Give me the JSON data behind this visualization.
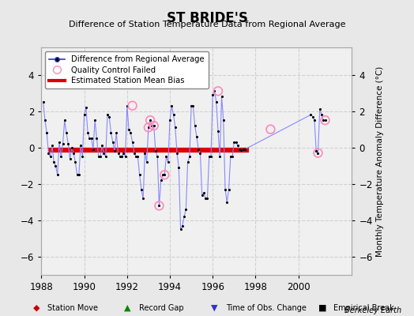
{
  "title": "ST BRIDE'S",
  "subtitle": "Difference of Station Temperature Data from Regional Average",
  "ylabel": "Monthly Temperature Anomaly Difference (°C)",
  "background_color": "#e8e8e8",
  "plot_bg_color": "#f0f0f0",
  "grid_color": "#d0d0d0",
  "xlim": [
    1988.0,
    2002.5
  ],
  "ylim": [
    -7.0,
    5.5
  ],
  "yticks": [
    -6,
    -4,
    -2,
    0,
    2,
    4
  ],
  "xticks": [
    1988,
    1990,
    1992,
    1994,
    1996,
    1998,
    2000
  ],
  "bias_level": -0.15,
  "bias_x_start": 1988.3,
  "bias_x_end": 1997.7,
  "main_line_color": "#8888ff",
  "main_marker_color": "#000000",
  "qc_color": "#ff88bb",
  "bias_color": "#dd0000",
  "x_data": [
    1988.083,
    1988.167,
    1988.25,
    1988.333,
    1988.417,
    1988.5,
    1988.583,
    1988.667,
    1988.75,
    1988.833,
    1988.917,
    1989.0,
    1989.083,
    1989.167,
    1989.25,
    1989.333,
    1989.417,
    1989.5,
    1989.583,
    1989.667,
    1989.75,
    1989.833,
    1989.917,
    1990.0,
    1990.083,
    1990.167,
    1990.25,
    1990.333,
    1990.417,
    1990.5,
    1990.583,
    1990.667,
    1990.75,
    1990.833,
    1990.917,
    1991.0,
    1991.083,
    1991.167,
    1991.25,
    1991.333,
    1991.417,
    1991.5,
    1991.583,
    1991.667,
    1991.75,
    1991.833,
    1991.917,
    1992.0,
    1992.083,
    1992.167,
    1992.25,
    1992.333,
    1992.417,
    1992.5,
    1992.583,
    1992.667,
    1992.75,
    1992.833,
    1992.917,
    1993.0,
    1993.083,
    1993.167,
    1993.25,
    1993.333,
    1993.417,
    1993.5,
    1993.583,
    1993.667,
    1993.75,
    1993.833,
    1993.917,
    1994.0,
    1994.083,
    1994.167,
    1994.25,
    1994.333,
    1994.417,
    1994.5,
    1994.583,
    1994.667,
    1994.75,
    1994.833,
    1994.917,
    1995.0,
    1995.083,
    1995.167,
    1995.25,
    1995.333,
    1995.417,
    1995.5,
    1995.583,
    1995.667,
    1995.75,
    1995.833,
    1995.917,
    1996.0,
    1996.083,
    1996.167,
    1996.25,
    1996.333,
    1996.417,
    1996.5,
    1996.583,
    1996.667,
    1996.75,
    1996.833,
    1996.917,
    1997.0,
    1997.083,
    1997.167,
    1997.25,
    1997.333,
    1997.417,
    1997.5,
    2000.583,
    2000.667,
    2000.75,
    2000.833,
    2000.917,
    2001.0,
    2001.083,
    2001.167,
    2001.25
  ],
  "y_data": [
    2.5,
    1.5,
    0.8,
    -0.3,
    -0.5,
    0.1,
    -0.8,
    -1.0,
    -1.5,
    0.3,
    -0.5,
    0.2,
    1.5,
    0.8,
    0.2,
    -0.6,
    0.0,
    -0.3,
    -0.8,
    -1.5,
    -1.5,
    0.1,
    -0.5,
    1.8,
    2.2,
    0.8,
    0.5,
    0.5,
    -0.1,
    1.5,
    0.5,
    -0.5,
    -0.5,
    0.1,
    -0.3,
    -0.5,
    1.8,
    1.7,
    0.8,
    0.3,
    -0.2,
    0.8,
    -0.3,
    -0.5,
    -0.5,
    -0.3,
    -0.5,
    2.3,
    1.0,
    0.8,
    0.3,
    -0.3,
    -0.5,
    -0.5,
    -1.5,
    -2.3,
    -2.8,
    -0.3,
    -0.8,
    1.1,
    1.5,
    1.2,
    1.2,
    -0.2,
    -0.5,
    -3.2,
    -1.8,
    -1.5,
    -1.5,
    -0.5,
    -0.8,
    1.5,
    2.3,
    1.8,
    1.1,
    -0.3,
    -1.1,
    -4.5,
    -4.3,
    -3.8,
    -3.4,
    -0.8,
    -0.5,
    2.3,
    2.3,
    1.2,
    0.6,
    -0.1,
    -0.3,
    -2.6,
    -2.5,
    -2.8,
    -2.8,
    -0.5,
    -0.5,
    2.9,
    3.1,
    2.5,
    0.9,
    -0.5,
    2.8,
    1.5,
    -2.3,
    -3.0,
    -2.3,
    -0.5,
    -0.5,
    0.3,
    0.3,
    0.1,
    -0.1,
    -0.15,
    -0.1,
    -0.1,
    1.8,
    1.7,
    1.5,
    -0.2,
    -0.3,
    2.1,
    1.8,
    1.5,
    1.5
  ],
  "qc_x": [
    1992.25,
    1993.0,
    1993.083,
    1993.25,
    1993.5,
    1993.75,
    1996.25,
    1998.7,
    2000.917,
    2001.25
  ],
  "qc_y": [
    2.3,
    1.1,
    1.5,
    1.2,
    -3.2,
    -1.5,
    3.1,
    1.0,
    -0.3,
    1.5
  ]
}
